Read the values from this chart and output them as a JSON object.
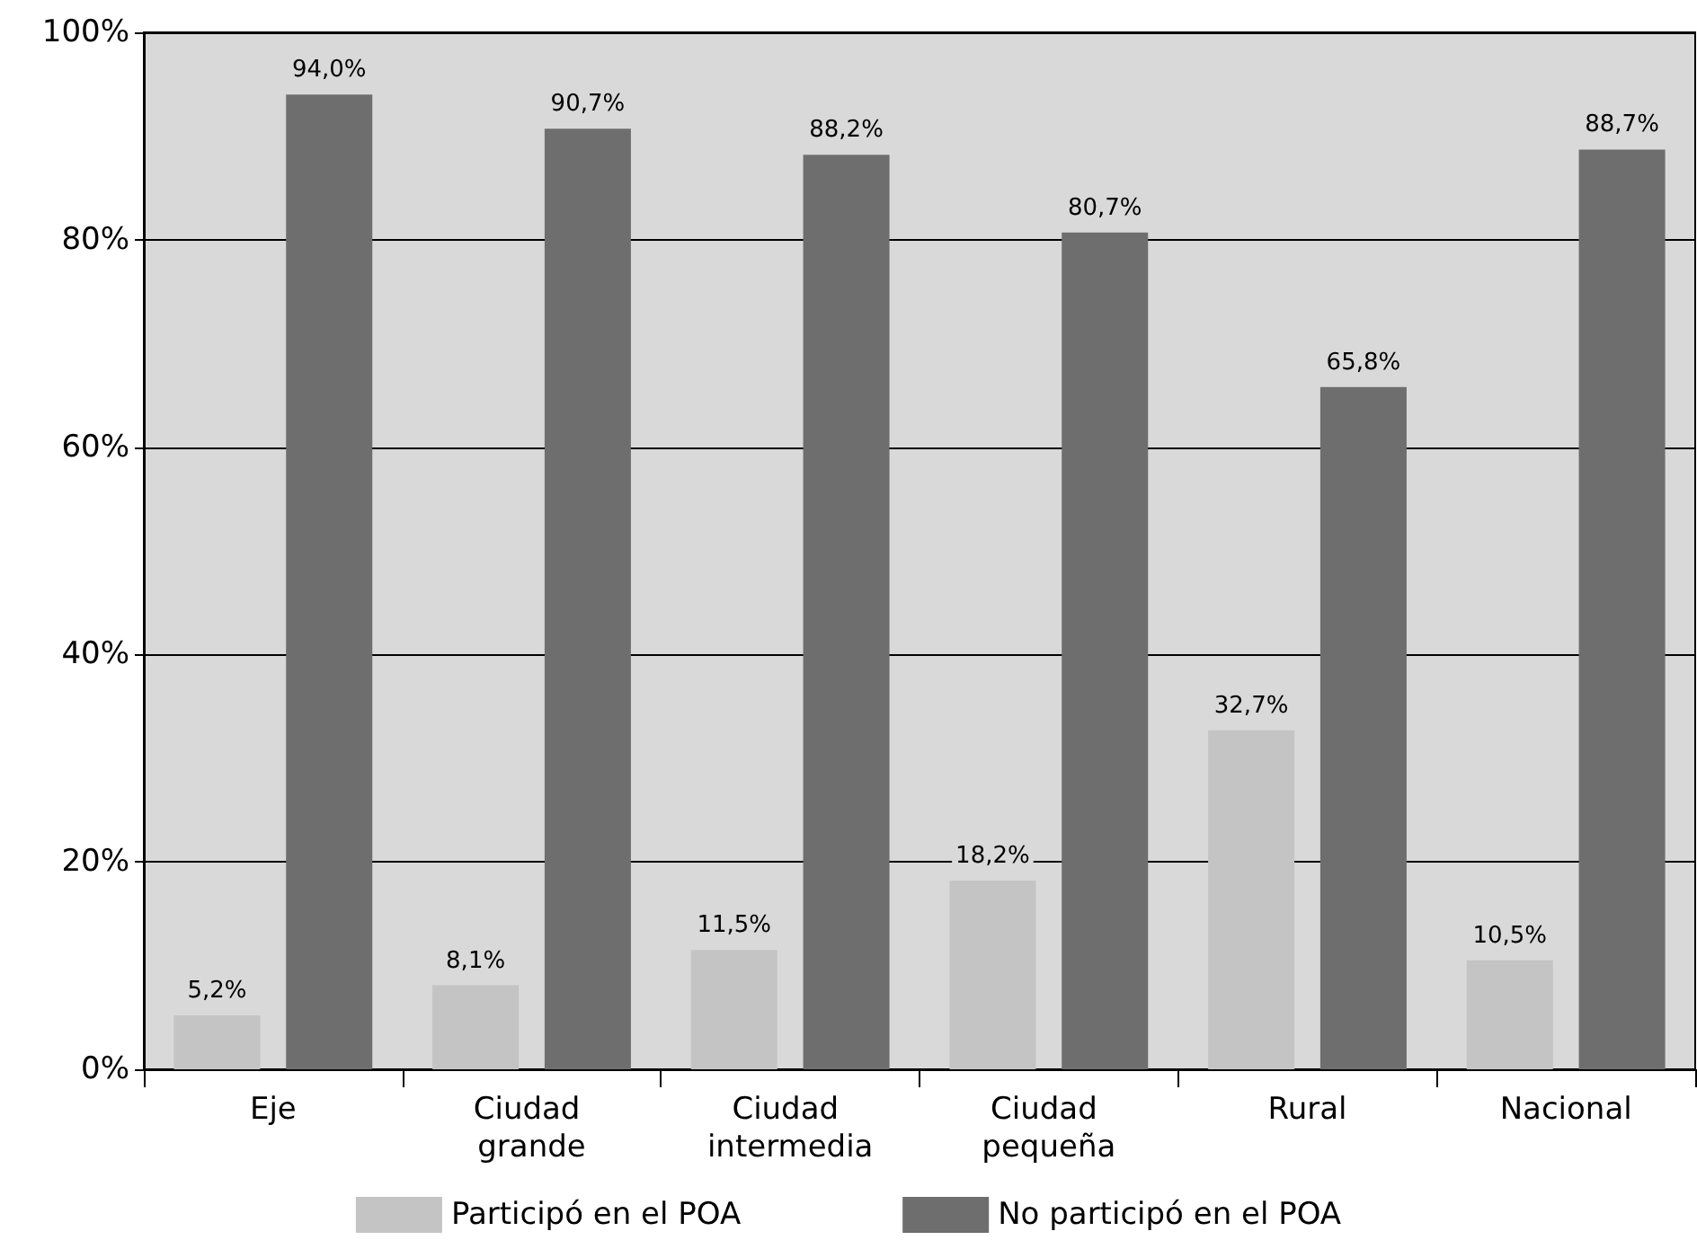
{
  "chart_data": {
    "type": "bar",
    "categories": [
      "Eje",
      "Ciudad grande",
      "Ciudad intermedia",
      "Ciudad pequeña",
      "Rural",
      "Nacional"
    ],
    "series": [
      {
        "name": "Participó en el POA",
        "color": "#c4c4c4",
        "values": [
          5.2,
          8.1,
          11.5,
          18.2,
          32.7,
          10.5
        ],
        "value_labels": [
          "5,2%",
          "8,1%",
          "11,5%",
          "18,2%",
          "32,7%",
          "10,5%"
        ]
      },
      {
        "name": "No participó en el POA",
        "color": "#6e6e6e",
        "values": [
          94.0,
          90.7,
          88.2,
          80.7,
          65.8,
          88.7
        ],
        "value_labels": [
          "94,0%",
          "90,7%",
          "88,2%",
          "80,7%",
          "65,8%",
          "88,7%"
        ]
      }
    ],
    "ylim": [
      0,
      100
    ],
    "yticks": [
      {
        "value": 0,
        "label": "0%"
      },
      {
        "value": 20,
        "label": "20%"
      },
      {
        "value": 40,
        "label": "40%"
      },
      {
        "value": 60,
        "label": "60%"
      },
      {
        "value": 80,
        "label": "80%"
      },
      {
        "value": 100,
        "label": "100%"
      }
    ],
    "grid": "y",
    "legend": "bottom"
  }
}
